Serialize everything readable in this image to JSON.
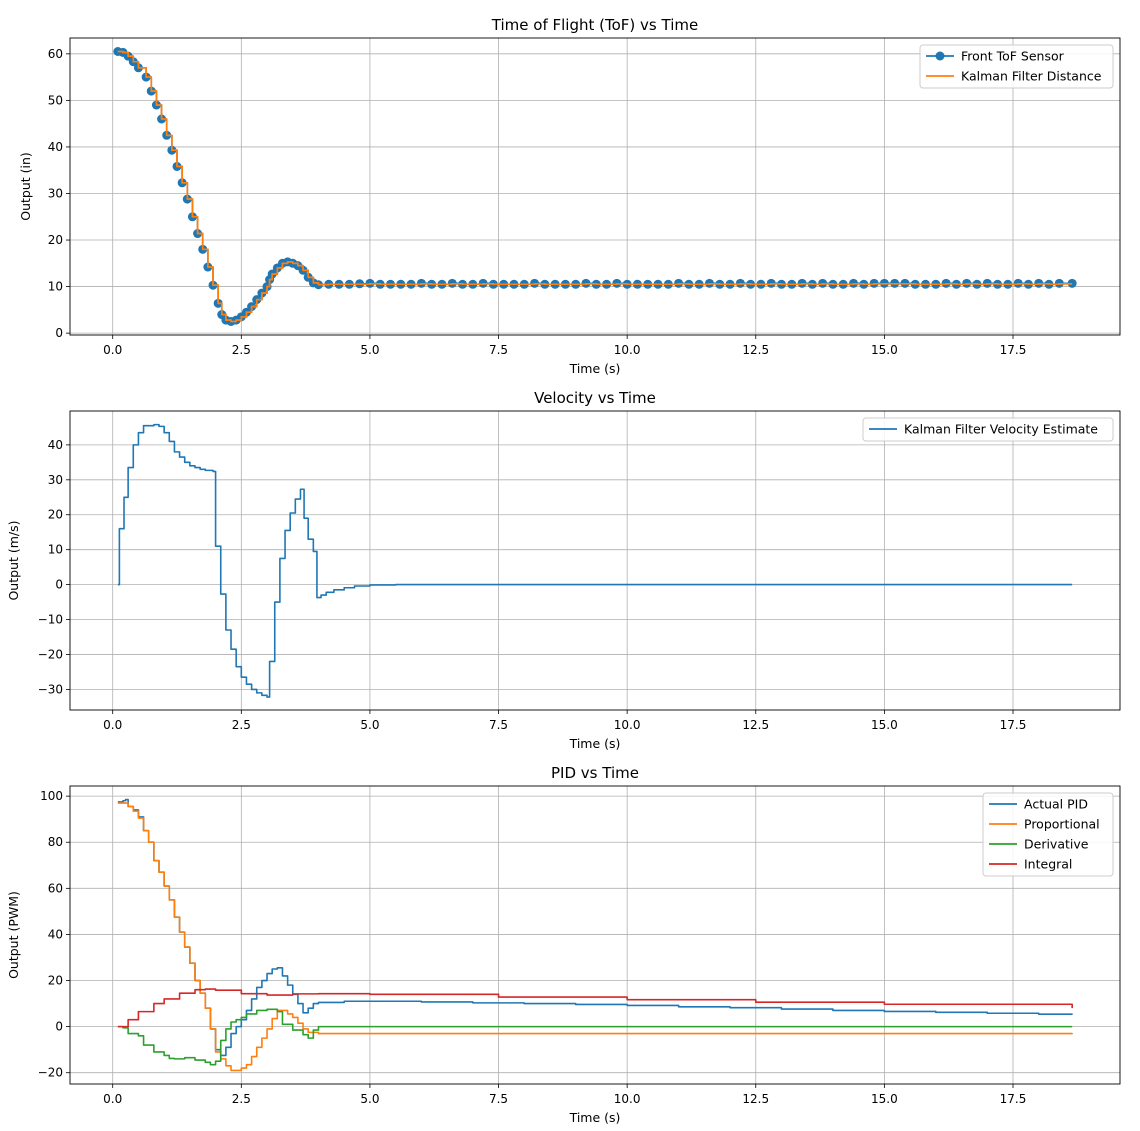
{
  "chart_data": [
    {
      "type": "line",
      "title": "Time of Flight (ToF) vs Time",
      "xlabel": "Time (s)",
      "ylabel": "Output (in)",
      "xlim": [
        -0.83,
        19.58
      ],
      "ylim": [
        -0.4,
        63.4
      ],
      "xticks": [
        0.0,
        2.5,
        5.0,
        7.5,
        10.0,
        12.5,
        15.0,
        17.5
      ],
      "yticks": [
        0,
        10,
        20,
        30,
        40,
        50,
        60
      ],
      "grid": true,
      "legend": "upper right",
      "x": [
        0.1,
        0.2,
        0.3,
        0.4,
        0.5,
        0.65,
        0.75,
        0.85,
        0.95,
        1.05,
        1.15,
        1.25,
        1.35,
        1.45,
        1.55,
        1.65,
        1.75,
        1.85,
        1.95,
        2.05,
        2.12,
        2.2,
        2.3,
        2.4,
        2.5,
        2.6,
        2.7,
        2.8,
        2.9,
        3.0,
        3.05,
        3.1,
        3.2,
        3.3,
        3.4,
        3.5,
        3.6,
        3.7,
        3.8,
        3.9,
        4.0,
        4.2,
        4.4,
        4.6,
        4.8,
        5.0,
        5.2,
        5.4,
        5.6,
        5.8,
        6.0,
        6.2,
        6.4,
        6.6,
        6.8,
        7.0,
        7.2,
        7.4,
        7.6,
        7.8,
        8.0,
        8.2,
        8.4,
        8.6,
        8.8,
        9.0,
        9.2,
        9.4,
        9.6,
        9.8,
        10.0,
        10.2,
        10.4,
        10.6,
        10.8,
        11.0,
        11.2,
        11.4,
        11.6,
        11.8,
        12.0,
        12.2,
        12.4,
        12.6,
        12.8,
        13.0,
        13.2,
        13.4,
        13.6,
        13.8,
        14.0,
        14.2,
        14.4,
        14.6,
        14.8,
        15.0,
        15.2,
        15.4,
        15.6,
        15.8,
        16.0,
        16.2,
        16.4,
        16.6,
        16.8,
        17.0,
        17.2,
        17.4,
        17.6,
        17.8,
        18.0,
        18.2,
        18.4,
        18.65
      ],
      "series": [
        {
          "name": "Front ToF Sensor",
          "color": "#1f77b4",
          "marker": "o",
          "values": [
            60.5,
            60.3,
            59.5,
            58.3,
            57,
            55,
            52,
            49,
            46,
            42.5,
            39.3,
            35.8,
            32.3,
            28.8,
            25,
            21.4,
            18,
            14.2,
            10.3,
            6.4,
            4,
            2.8,
            2.5,
            2.8,
            3.5,
            4.5,
            5.7,
            7.2,
            8.6,
            10,
            11.5,
            12.7,
            14,
            15,
            15.3,
            15,
            14.5,
            13.5,
            12,
            10.8,
            10.4,
            10.5,
            10.5,
            10.5,
            10.6,
            10.7,
            10.5,
            10.5,
            10.5,
            10.5,
            10.7,
            10.5,
            10.5,
            10.7,
            10.5,
            10.5,
            10.7,
            10.5,
            10.5,
            10.5,
            10.5,
            10.7,
            10.5,
            10.5,
            10.5,
            10.5,
            10.7,
            10.5,
            10.5,
            10.7,
            10.5,
            10.5,
            10.5,
            10.5,
            10.5,
            10.7,
            10.5,
            10.5,
            10.7,
            10.5,
            10.5,
            10.7,
            10.5,
            10.5,
            10.7,
            10.5,
            10.5,
            10.7,
            10.5,
            10.7,
            10.5,
            10.5,
            10.7,
            10.5,
            10.7,
            10.7,
            10.7,
            10.7,
            10.5,
            10.5,
            10.5,
            10.7,
            10.5,
            10.7,
            10.5,
            10.7,
            10.5,
            10.5,
            10.7,
            10.5,
            10.7,
            10.5,
            10.7,
            10.7
          ]
        },
        {
          "name": "Kalman Filter Distance",
          "color": "#ff7f0e",
          "marker": "",
          "values": [
            60.5,
            60.3,
            59.5,
            58.3,
            57,
            55,
            52,
            49,
            46,
            42.5,
            39.3,
            35.8,
            32.3,
            28.8,
            25,
            21.4,
            18,
            14.2,
            10.3,
            6.4,
            4,
            2.8,
            2.5,
            2.8,
            3.5,
            4.5,
            5.7,
            7.2,
            8.6,
            10,
            11.5,
            12.7,
            14,
            15,
            15.3,
            15,
            14.5,
            13.5,
            12,
            10.8,
            10.4,
            10.5,
            10.5,
            10.5,
            10.5,
            10.6,
            10.5,
            10.5,
            10.5,
            10.5,
            10.6,
            10.5,
            10.5,
            10.6,
            10.5,
            10.5,
            10.6,
            10.5,
            10.5,
            10.5,
            10.5,
            10.6,
            10.5,
            10.5,
            10.5,
            10.5,
            10.6,
            10.5,
            10.5,
            10.6,
            10.5,
            10.5,
            10.5,
            10.5,
            10.5,
            10.6,
            10.5,
            10.5,
            10.6,
            10.5,
            10.5,
            10.6,
            10.5,
            10.5,
            10.6,
            10.5,
            10.5,
            10.6,
            10.5,
            10.6,
            10.5,
            10.5,
            10.6,
            10.5,
            10.6,
            10.6,
            10.6,
            10.6,
            10.5,
            10.5,
            10.5,
            10.6,
            10.5,
            10.6,
            10.5,
            10.6,
            10.5,
            10.5,
            10.6,
            10.5,
            10.6,
            10.5,
            10.6,
            10.6
          ]
        }
      ]
    },
    {
      "type": "line",
      "title": "Velocity vs Time",
      "xlabel": "Time (s)",
      "ylabel": "Output (m/s)",
      "xlim": [
        -0.83,
        19.58
      ],
      "ylim": [
        -35.9,
        49.7
      ],
      "xticks": [
        0.0,
        2.5,
        5.0,
        7.5,
        10.0,
        12.5,
        15.0,
        17.5
      ],
      "yticks": [
        -30,
        -20,
        -10,
        0,
        10,
        20,
        30,
        40
      ],
      "grid": true,
      "legend": "upper right",
      "x": [
        0.1,
        0.13,
        0.22,
        0.3,
        0.4,
        0.5,
        0.6,
        0.8,
        0.9,
        1.0,
        1.1,
        1.2,
        1.3,
        1.4,
        1.5,
        1.6,
        1.7,
        1.8,
        1.95,
        2.0,
        2.1,
        2.2,
        2.3,
        2.4,
        2.5,
        2.6,
        2.7,
        2.8,
        2.9,
        3.0,
        3.05,
        3.15,
        3.25,
        3.35,
        3.45,
        3.55,
        3.65,
        3.72,
        3.8,
        3.9,
        3.97,
        4.05,
        4.15,
        4.3,
        4.5,
        4.7,
        5.0,
        5.5,
        18.65
      ],
      "series": [
        {
          "name": "Kalman Filter Velocity Estimate",
          "color": "#1f77b4",
          "values": [
            0,
            16,
            25,
            33.5,
            40,
            43.5,
            45.5,
            45.8,
            45.3,
            43.5,
            41,
            38,
            36.5,
            35,
            34,
            33.5,
            33,
            32.7,
            32.4,
            11,
            -2.7,
            -13,
            -18.5,
            -23.5,
            -26.5,
            -28.5,
            -30,
            -31,
            -31.7,
            -32.2,
            -22,
            -5,
            7.5,
            15.5,
            20.5,
            24.5,
            27.3,
            19,
            13,
            9.5,
            -3.7,
            -3,
            -2.2,
            -1.5,
            -0.9,
            -0.4,
            -0.1,
            0,
            0
          ]
        }
      ]
    },
    {
      "type": "line",
      "title": "PID vs Time",
      "xlabel": "Time (s)",
      "ylabel": "Output (PWM)",
      "xlim": [
        -0.83,
        19.58
      ],
      "ylim": [
        -24.9,
        104.4
      ],
      "xticks": [
        0.0,
        2.5,
        5.0,
        7.5,
        10.0,
        12.5,
        15.0,
        17.5
      ],
      "yticks": [
        -20,
        0,
        20,
        40,
        60,
        80,
        100
      ],
      "grid": true,
      "legend": "upper right",
      "series": [
        {
          "name": "Actual PID",
          "color": "#1f77b4",
          "x": [
            0.1,
            0.2,
            0.25,
            0.3,
            0.4,
            0.5,
            0.6,
            0.7,
            0.8,
            0.9,
            1.0,
            1.1,
            1.2,
            1.3,
            1.4,
            1.5,
            1.6,
            1.7,
            1.8,
            1.9,
            2.0,
            2.1,
            2.2,
            2.3,
            2.4,
            2.5,
            2.6,
            2.7,
            2.8,
            2.9,
            3.0,
            3.1,
            3.2,
            3.3,
            3.4,
            3.5,
            3.6,
            3.7,
            3.8,
            3.9,
            4.0,
            4.5,
            5,
            6,
            7,
            8,
            9,
            10,
            11,
            12,
            13,
            14,
            15,
            16,
            17,
            18,
            18.65
          ],
          "values": [
            97.5,
            98,
            98.5,
            95.5,
            94,
            91,
            85,
            80,
            72,
            67,
            61,
            55,
            47.5,
            41,
            34.5,
            27.5,
            20,
            14.5,
            8,
            -1,
            -10,
            -12.5,
            -9,
            -3,
            0,
            3,
            7,
            12,
            17,
            20,
            23,
            25,
            25.5,
            22,
            18,
            14,
            10,
            6,
            8,
            10,
            10.5,
            11,
            11,
            10.7,
            10.3,
            10,
            9.6,
            9.2,
            8.6,
            8.2,
            7.6,
            7,
            6.6,
            6.2,
            5.8,
            5.4,
            5.2
          ]
        },
        {
          "name": "Proportional",
          "color": "#ff7f0e",
          "x": [
            0.1,
            0.2,
            0.3,
            0.4,
            0.5,
            0.6,
            0.7,
            0.8,
            0.9,
            1.0,
            1.1,
            1.2,
            1.3,
            1.4,
            1.5,
            1.6,
            1.7,
            1.8,
            1.9,
            2.0,
            2.1,
            2.2,
            2.3,
            2.4,
            2.5,
            2.6,
            2.7,
            2.8,
            2.9,
            3.0,
            3.1,
            3.2,
            3.3,
            3.4,
            3.5,
            3.6,
            3.7,
            3.8,
            4.0,
            18.65
          ],
          "values": [
            97,
            97,
            95.5,
            93.5,
            90.5,
            85,
            80,
            72,
            67,
            61,
            55,
            47.5,
            41,
            34.5,
            27.5,
            20,
            14.5,
            8,
            -1,
            -11,
            -14,
            -17,
            -19,
            -19,
            -18,
            -16.5,
            -13,
            -9,
            -5,
            -1,
            3.5,
            7,
            7,
            5.5,
            4,
            1.5,
            -1,
            -2.5,
            -3,
            -2.8
          ]
        },
        {
          "name": "Derivative",
          "color": "#2ca02c",
          "x": [
            0.1,
            0.2,
            0.3,
            0.5,
            0.6,
            0.8,
            1.0,
            1.1,
            1.2,
            1.4,
            1.6,
            1.8,
            1.9,
            2.0,
            2.1,
            2.2,
            2.3,
            2.4,
            2.5,
            2.6,
            2.8,
            3.0,
            3.2,
            3.3,
            3.5,
            3.7,
            3.8,
            3.9,
            4.0,
            18.65
          ],
          "values": [
            0,
            -0.5,
            -3,
            -4,
            -8,
            -11,
            -12.5,
            -13.8,
            -14,
            -13.5,
            -14.5,
            -15.5,
            -16.5,
            -15,
            -6,
            -1,
            2,
            3,
            4,
            5.5,
            7,
            7.5,
            6.5,
            1,
            -1.5,
            -3.5,
            -5,
            -1.5,
            0,
            0
          ]
        },
        {
          "name": "Integral",
          "color": "#d62728",
          "x": [
            0.1,
            0.3,
            0.5,
            0.8,
            1.0,
            1.3,
            1.6,
            1.8,
            2.0,
            2.5,
            3.0,
            3.5,
            4.0,
            5,
            7.5,
            10,
            12.5,
            15,
            18.65
          ],
          "values": [
            0,
            3,
            6.5,
            10,
            12,
            14.5,
            16,
            16.3,
            15.8,
            14.3,
            13.7,
            14.2,
            14.3,
            14,
            12.8,
            11.7,
            10.6,
            9.7,
            8
          ]
        }
      ]
    }
  ]
}
